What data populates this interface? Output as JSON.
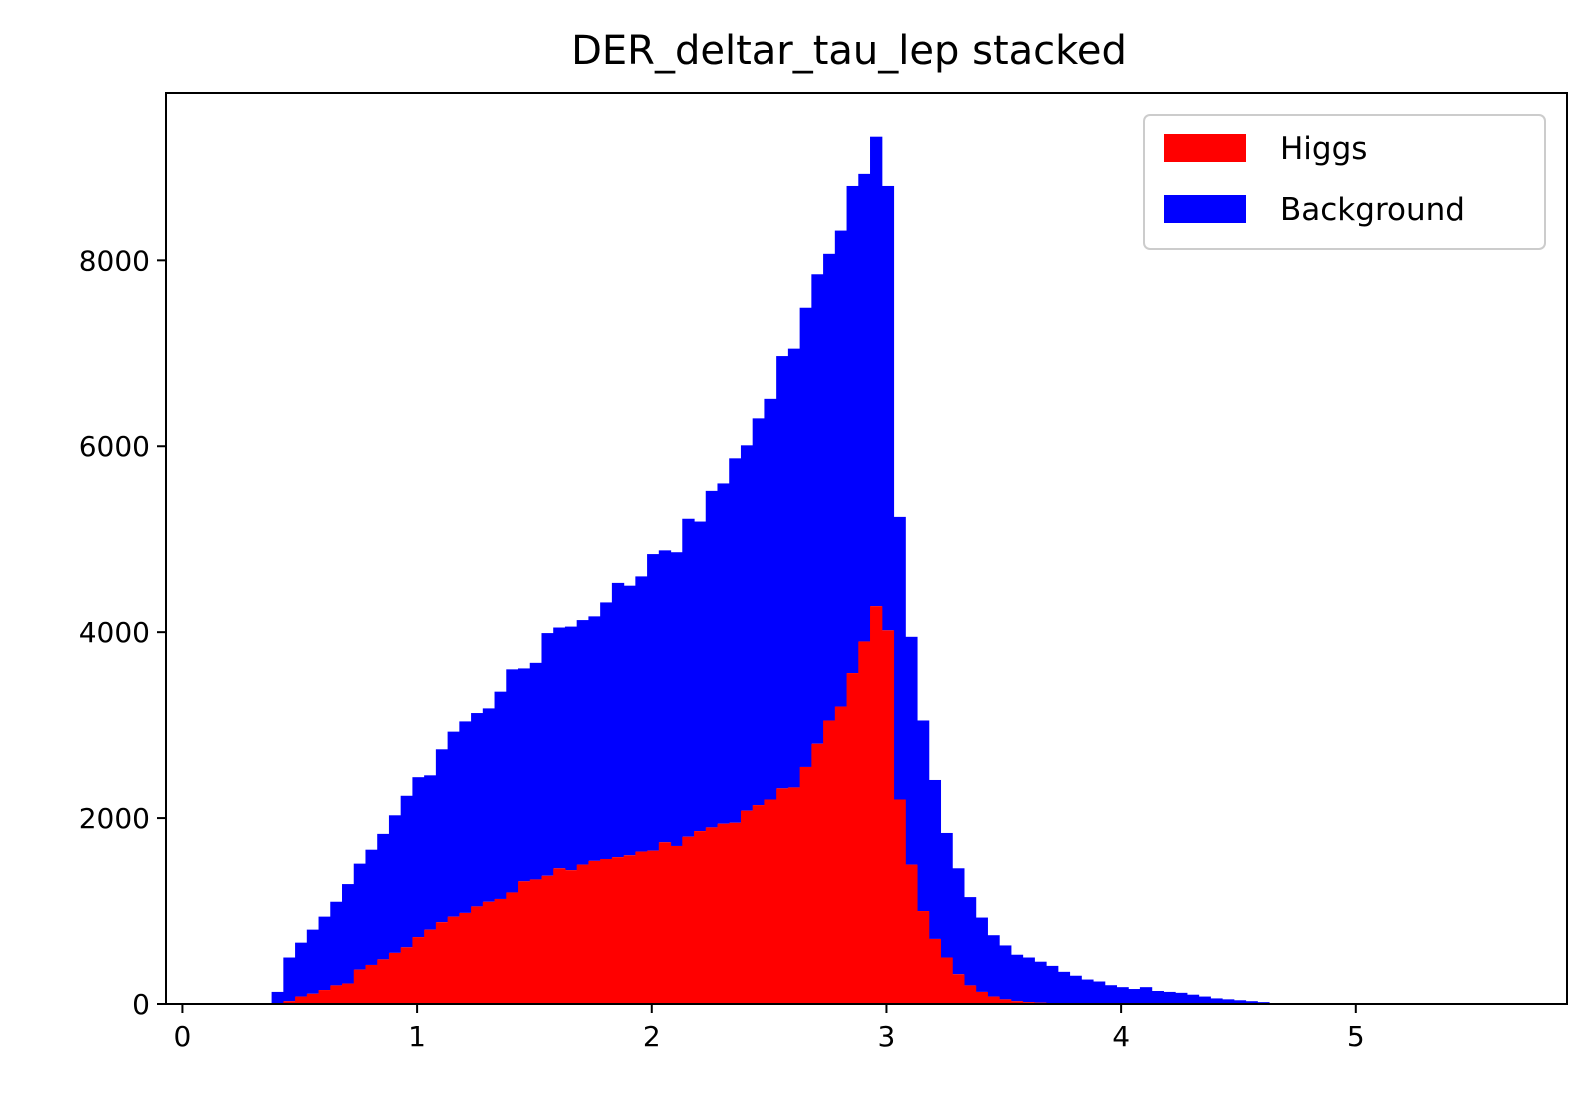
{
  "chart_data": {
    "type": "bar",
    "title": "DER_deltar_tau_lep stacked",
    "xlabel": "",
    "ylabel": "",
    "xlim": [
      -0.07,
      5.9
    ],
    "ylim": [
      0,
      9800
    ],
    "xticks": [
      0,
      1,
      2,
      3,
      4,
      5
    ],
    "yticks": [
      0,
      2000,
      4000,
      6000,
      8000
    ],
    "grid": false,
    "legend_position": "top-right",
    "bin_edges_start": 0.38,
    "bin_width": 0.05,
    "series": [
      {
        "name": "Higgs",
        "color": "#ff0000",
        "values": [
          0,
          30,
          80,
          110,
          150,
          200,
          220,
          370,
          420,
          480,
          550,
          610,
          720,
          800,
          880,
          940,
          980,
          1050,
          1100,
          1130,
          1200,
          1320,
          1340,
          1380,
          1460,
          1440,
          1500,
          1540,
          1560,
          1580,
          1600,
          1640,
          1650,
          1740,
          1700,
          1800,
          1860,
          1900,
          1940,
          1950,
          2080,
          2140,
          2200,
          2320,
          2330,
          2550,
          2800,
          3050,
          3200,
          3560,
          3900,
          4280,
          4020,
          2200,
          1500,
          1000,
          700,
          500,
          320,
          200,
          130,
          80,
          50,
          30,
          20,
          15,
          10,
          6,
          4,
          3,
          2,
          2,
          1,
          1,
          1,
          0,
          0,
          0,
          0,
          0,
          0,
          0,
          0,
          0,
          0,
          0,
          0,
          0
        ]
      },
      {
        "name": "Background",
        "color": "#0000ff",
        "values": [
          130,
          470,
          580,
          690,
          790,
          900,
          1070,
          1140,
          1240,
          1350,
          1480,
          1630,
          1720,
          1660,
          1860,
          1990,
          2060,
          2080,
          2080,
          2230,
          2400,
          2290,
          2330,
          2610,
          2590,
          2620,
          2630,
          2630,
          2760,
          2950,
          2900,
          2960,
          3190,
          3140,
          3160,
          3420,
          3330,
          3620,
          3660,
          3920,
          3930,
          4160,
          4310,
          4650,
          4720,
          4940,
          5050,
          5020,
          5120,
          5240,
          5030,
          5050,
          4780,
          3040,
          2450,
          2050,
          1710,
          1340,
          1140,
          950,
          800,
          660,
          580,
          500,
          480,
          440,
          400,
          340,
          300,
          260,
          240,
          200,
          180,
          160,
          180,
          140,
          130,
          120,
          100,
          80,
          60,
          50,
          40,
          30,
          20,
          10,
          10,
          0
        ]
      }
    ]
  }
}
